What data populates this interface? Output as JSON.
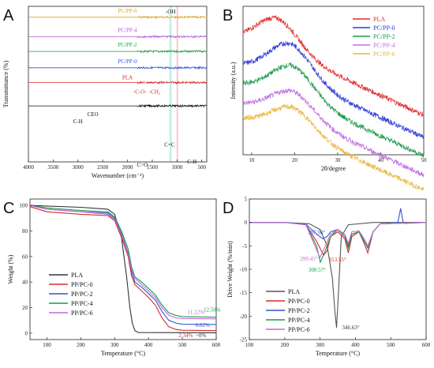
{
  "chart_data": [
    {
      "panel": "A",
      "type": "line",
      "xlabel": "Wavenumber (cm⁻¹)",
      "ylabel": "Transmittance (%)",
      "xlim": [
        4000,
        400
      ],
      "x_ticks": [
        4000,
        3500,
        3000,
        2500,
        2000,
        1500,
        1000,
        500
      ],
      "series": [
        {
          "name": "PC/PP-6",
          "color": "#d9a423",
          "offset": 0.06,
          "x": [
            4000,
            3500,
            3000,
            2900,
            2500,
            2000,
            1760,
            1700,
            1500,
            1450,
            1380,
            1300,
            1180,
            1150,
            1090,
            1040,
            1000,
            900,
            850,
            700,
            500,
            400
          ],
          "y": [
            0,
            0,
            0,
            -0.04,
            0,
            -0.01,
            -0.05,
            -0.02,
            -0.03,
            -0.06,
            -0.05,
            -0.03,
            -0.12,
            -0.08,
            -0.1,
            -0.09,
            -0.02,
            -0.03,
            -0.05,
            -0.03,
            -0.02,
            -0.01
          ]
        },
        {
          "name": "PC/PP-4",
          "color": "#b05ad6",
          "offset": 0.185,
          "x": [
            4000,
            3500,
            3000,
            2900,
            2500,
            2000,
            1760,
            1700,
            1500,
            1450,
            1380,
            1300,
            1180,
            1150,
            1090,
            1040,
            1000,
            900,
            850,
            700,
            500,
            400
          ],
          "y": [
            0,
            0,
            0,
            -0.03,
            0,
            -0.01,
            -0.04,
            -0.02,
            -0.03,
            -0.05,
            -0.04,
            -0.03,
            -0.1,
            -0.07,
            -0.09,
            -0.08,
            -0.02,
            -0.03,
            -0.04,
            -0.03,
            -0.02,
            -0.01
          ]
        },
        {
          "name": "PC/PP-2",
          "color": "#1a9a4a",
          "offset": 0.28,
          "x": [
            4000,
            3500,
            3000,
            2900,
            2500,
            2000,
            1760,
            1700,
            1500,
            1450,
            1380,
            1300,
            1180,
            1150,
            1090,
            1040,
            1000,
            900,
            850,
            700,
            500,
            400
          ],
          "y": [
            0,
            0,
            0,
            -0.03,
            0,
            -0.01,
            -0.04,
            -0.02,
            -0.03,
            -0.05,
            -0.04,
            -0.03,
            -0.09,
            -0.07,
            -0.08,
            -0.07,
            -0.02,
            -0.03,
            -0.04,
            -0.03,
            -0.02,
            -0.01
          ]
        },
        {
          "name": "PC/PP-0",
          "color": "#2f55d4",
          "offset": 0.385,
          "x": [
            4000,
            3500,
            3000,
            2900,
            2500,
            2000,
            1760,
            1700,
            1500,
            1450,
            1380,
            1300,
            1180,
            1150,
            1090,
            1040,
            1000,
            900,
            850,
            700,
            500,
            400
          ],
          "y": [
            0,
            0,
            0,
            -0.03,
            0,
            -0.01,
            -0.05,
            -0.02,
            -0.03,
            -0.05,
            -0.04,
            -0.03,
            -0.1,
            -0.07,
            -0.09,
            -0.08,
            -0.02,
            -0.03,
            -0.04,
            -0.03,
            -0.02,
            -0.01
          ]
        },
        {
          "name": "PLA",
          "color": "#d82a2a",
          "offset": 0.49,
          "x": [
            4000,
            3500,
            3000,
            2950,
            2500,
            2000,
            1800,
            1757,
            1720,
            1500,
            1455,
            1380,
            1360,
            1270,
            1210,
            1180,
            1130,
            1085,
            1045,
            960,
            870,
            760,
            700,
            500,
            400
          ],
          "y": [
            0,
            0,
            0,
            -0.01,
            0,
            0,
            -0.01,
            -0.13,
            -0.02,
            -0.02,
            -0.06,
            -0.05,
            -0.07,
            -0.05,
            -0.08,
            -0.14,
            -0.06,
            -0.13,
            -0.09,
            -0.02,
            -0.04,
            -0.03,
            -0.01,
            0,
            0
          ]
        },
        {
          "name": "CEO",
          "color": "#111111",
          "offset": 0.62,
          "x": [
            4000,
            3600,
            3200,
            3050,
            3000,
            2950,
            2900,
            2850,
            2500,
            2000,
            1800,
            1690,
            1680,
            1650,
            1600,
            1580,
            1510,
            1450,
            1420,
            1330,
            1300,
            1255,
            1240,
            1180,
            1120,
            1080,
            1030,
            1000,
            950,
            900,
            870,
            850,
            800,
            760,
            700,
            600,
            500,
            400
          ],
          "y": [
            0,
            -0.01,
            -0.02,
            -0.04,
            -0.05,
            -0.07,
            -0.06,
            -0.05,
            -0.02,
            -0.02,
            -0.03,
            -0.3,
            -0.25,
            -0.12,
            -0.22,
            -0.14,
            -0.08,
            -0.12,
            -0.14,
            -0.1,
            -0.2,
            -0.12,
            -0.24,
            -0.13,
            -0.28,
            -0.16,
            -0.28,
            -0.1,
            -0.24,
            -0.14,
            -0.12,
            -0.2,
            -0.1,
            -0.3,
            -0.18,
            -0.05,
            -0.04,
            -0.02
          ]
        }
      ],
      "highlight_bands": [
        {
          "from": 1150,
          "to": 1110,
          "color": "#a8e6d8",
          "label": "-OH"
        },
        {
          "from": 1010,
          "to": 975,
          "color": "#f7b8b8",
          "label": ""
        }
      ],
      "annotations": [
        {
          "text": "-C-O-",
          "x": 1750,
          "color": "#d82a2a"
        },
        {
          "text": "-CH₂",
          "x": 1450,
          "color": "#d82a2a"
        },
        {
          "text": "C-H",
          "x": 3000,
          "color": "#111111"
        },
        {
          "text": "C=O",
          "x": 1700,
          "color": "#111111"
        },
        {
          "text": "C=C",
          "x": 1150,
          "color": "#111111"
        },
        {
          "text": "C-H",
          "x": 700,
          "color": "#111111"
        }
      ]
    },
    {
      "panel": "B",
      "type": "line",
      "xlabel": "2θ/degree",
      "ylabel": "Intensity (a.u.)",
      "xlim": [
        8,
        50
      ],
      "x_ticks": [
        10,
        20,
        30,
        40,
        50
      ],
      "legend": "top-right",
      "series": [
        {
          "name": "PLA",
          "color": "#e02b2b",
          "offset": 0.92,
          "peak": 16,
          "height": 0.2
        },
        {
          "name": "PC/PP-0",
          "color": "#2a38d8",
          "offset": 0.73,
          "peak": 19,
          "height": 0.22
        },
        {
          "name": "PC/PP-2",
          "color": "#1a9a4a",
          "offset": 0.6,
          "peak": 19.5,
          "height": 0.2
        },
        {
          "name": "PC/PP-4",
          "color": "#bf6ee0",
          "offset": 0.47,
          "peak": 19.5,
          "height": 0.16
        },
        {
          "name": "PC/PP-6",
          "color": "#e8b840",
          "offset": 0.37,
          "peak": 19.5,
          "height": 0.15
        }
      ]
    },
    {
      "panel": "C",
      "type": "line",
      "xlabel": "Temperature (°C)",
      "ylabel": "Weight (%)",
      "xlim": [
        50,
        600
      ],
      "ylim": [
        -5,
        105
      ],
      "x_ticks": [
        100,
        200,
        300,
        400,
        500,
        600
      ],
      "y_ticks": [
        0,
        20,
        40,
        60,
        80,
        100
      ],
      "legend": "bottom-left",
      "series": [
        {
          "name": "PLA",
          "color": "#333333",
          "x": [
            50,
            100,
            200,
            280,
            300,
            320,
            335,
            345,
            352,
            360,
            370,
            600
          ],
          "y": [
            100,
            99.5,
            98.5,
            97,
            93,
            75,
            45,
            20,
            8,
            2,
            0.5,
            0.3
          ]
        },
        {
          "name": "PP/PC-0",
          "color": "#d82a2a",
          "x": [
            50,
            100,
            200,
            280,
            300,
            320,
            340,
            350,
            360,
            380,
            400,
            420,
            440,
            460,
            480,
            500,
            600
          ],
          "y": [
            99,
            95,
            93,
            92,
            88,
            75,
            60,
            45,
            38,
            33,
            28,
            22,
            12,
            5,
            3,
            2.3,
            2
          ]
        },
        {
          "name": "PP/PC-2",
          "color": "#2f55d4",
          "x": [
            50,
            100,
            200,
            280,
            300,
            320,
            340,
            350,
            360,
            380,
            400,
            420,
            440,
            460,
            480,
            500,
            600
          ],
          "y": [
            100,
            97,
            95,
            94,
            90,
            78,
            63,
            48,
            40,
            36,
            31,
            26,
            17,
            10,
            8,
            7,
            6.8
          ]
        },
        {
          "name": "PP/PC-4",
          "color": "#1a9a4a",
          "x": [
            50,
            100,
            200,
            280,
            300,
            320,
            340,
            350,
            360,
            380,
            400,
            420,
            440,
            460,
            480,
            500,
            600
          ],
          "y": [
            100,
            98,
            96,
            95,
            91,
            80,
            66,
            52,
            44,
            40,
            35,
            30,
            22,
            16,
            14,
            13,
            12.5
          ]
        },
        {
          "name": "PP/PC-6",
          "color": "#c26ad6",
          "x": [
            50,
            100,
            200,
            280,
            300,
            320,
            340,
            350,
            360,
            380,
            400,
            420,
            440,
            460,
            480,
            500,
            600
          ],
          "y": [
            100,
            97,
            95,
            93,
            89,
            77,
            62,
            50,
            43,
            38,
            33,
            28,
            20,
            14,
            12,
            11.5,
            11.2
          ]
        }
      ],
      "data_labels": [
        {
          "text": "12.50%",
          "x": 588,
          "y": 17,
          "color": "#1a9a4a"
        },
        {
          "text": "11.22%",
          "x": 540,
          "y": 15,
          "color": "#c26ad6"
        },
        {
          "text": "6.82%",
          "x": 560,
          "y": 5,
          "color": "#2f55d4"
        },
        {
          "text": "2.34%",
          "x": 510,
          "y": -3,
          "color": "#d82a2a"
        },
        {
          "text": "~0%",
          "x": 555,
          "y": -3,
          "color": "#333333"
        }
      ]
    },
    {
      "panel": "D",
      "type": "line",
      "xlabel": "Temperature (°C)",
      "ylabel": "Drive Weight (%/min)",
      "xlim": [
        100,
        600
      ],
      "ylim": [
        -25,
        5
      ],
      "x_ticks": [
        100,
        200,
        300,
        400,
        500,
        600
      ],
      "y_ticks": [
        -25,
        -20,
        -15,
        -10,
        -5,
        0,
        5
      ],
      "legend": "bottom-left",
      "series": [
        {
          "name": "PLA",
          "color": "#555555",
          "x": [
            100,
            200,
            270,
            300,
            320,
            335,
            342,
            346.63,
            352,
            360,
            380,
            450,
            600
          ],
          "y": [
            0,
            0,
            -0.3,
            -1.5,
            -5,
            -12,
            -19,
            -22.5,
            -15,
            -3,
            -0.5,
            0,
            0
          ]
        },
        {
          "name": "PP/PC-0",
          "color": "#d82a2a",
          "x": [
            100,
            200,
            260,
            290,
            310,
            320,
            330,
            350,
            370,
            380,
            390,
            410,
            425,
            435,
            450,
            470,
            600
          ],
          "y": [
            0,
            0,
            -0.5,
            -4,
            -7,
            -6,
            -3,
            -2,
            -3.5,
            -6.5,
            -3,
            -2,
            -4.5,
            -6.5,
            -2,
            -0.3,
            0
          ]
        },
        {
          "name": "PP/PC-2",
          "color": "#2f55d4",
          "x": [
            100,
            200,
            260,
            290,
            307.98,
            320,
            330,
            350,
            370,
            380,
            390,
            410,
            425,
            435,
            450,
            470,
            520,
            528,
            535,
            540,
            600
          ],
          "y": [
            0,
            0,
            -0.4,
            -2.5,
            -3.5,
            -3,
            -2,
            -1.5,
            -3,
            -5,
            -2.5,
            -2,
            -4,
            -5.5,
            -2,
            -0.3,
            0,
            3,
            0,
            -0.2,
            0
          ]
        },
        {
          "name": "PP/PC-4",
          "color": "#1a9a4a",
          "x": [
            100,
            200,
            260,
            290,
            300.57,
            315,
            330,
            350,
            370,
            380,
            390,
            410,
            425,
            435,
            450,
            470,
            600
          ],
          "y": [
            0,
            0,
            -0.5,
            -5,
            -8.5,
            -6,
            -3,
            -1.5,
            -3,
            -5.5,
            -2.5,
            -2,
            -4,
            -5.5,
            -2,
            -0.3,
            0
          ]
        },
        {
          "name": "PP/PC-6",
          "color": "#c26ad6",
          "x": [
            100,
            200,
            260,
            280,
            299.45,
            315,
            330,
            350,
            370,
            380,
            390,
            410,
            425,
            435,
            450,
            470,
            600
          ],
          "y": [
            0,
            0,
            -0.5,
            -4,
            -7.5,
            -5,
            -2.5,
            -1.5,
            -2.5,
            -4.5,
            -2,
            -1.8,
            -3.5,
            -5,
            -2,
            -0.3,
            0
          ]
        }
      ],
      "data_labels": [
        {
          "text": "307.98°",
          "x": 307.98,
          "y": -3.5,
          "color": "#2f55d4"
        },
        {
          "text": "299.45°",
          "x": 299.45,
          "y": -7.5,
          "color": "#c26ad6"
        },
        {
          "text": "300.57°",
          "x": 300.57,
          "y": -8.5,
          "color": "#1a9a4a"
        },
        {
          "text": "313.55°",
          "x": 313.55,
          "y": -7,
          "color": "#d82a2a"
        },
        {
          "text": "346.63°",
          "x": 346.63,
          "y": -22.5,
          "color": "#333333"
        }
      ]
    }
  ],
  "panel_labels": [
    "A",
    "B",
    "C",
    "D"
  ]
}
